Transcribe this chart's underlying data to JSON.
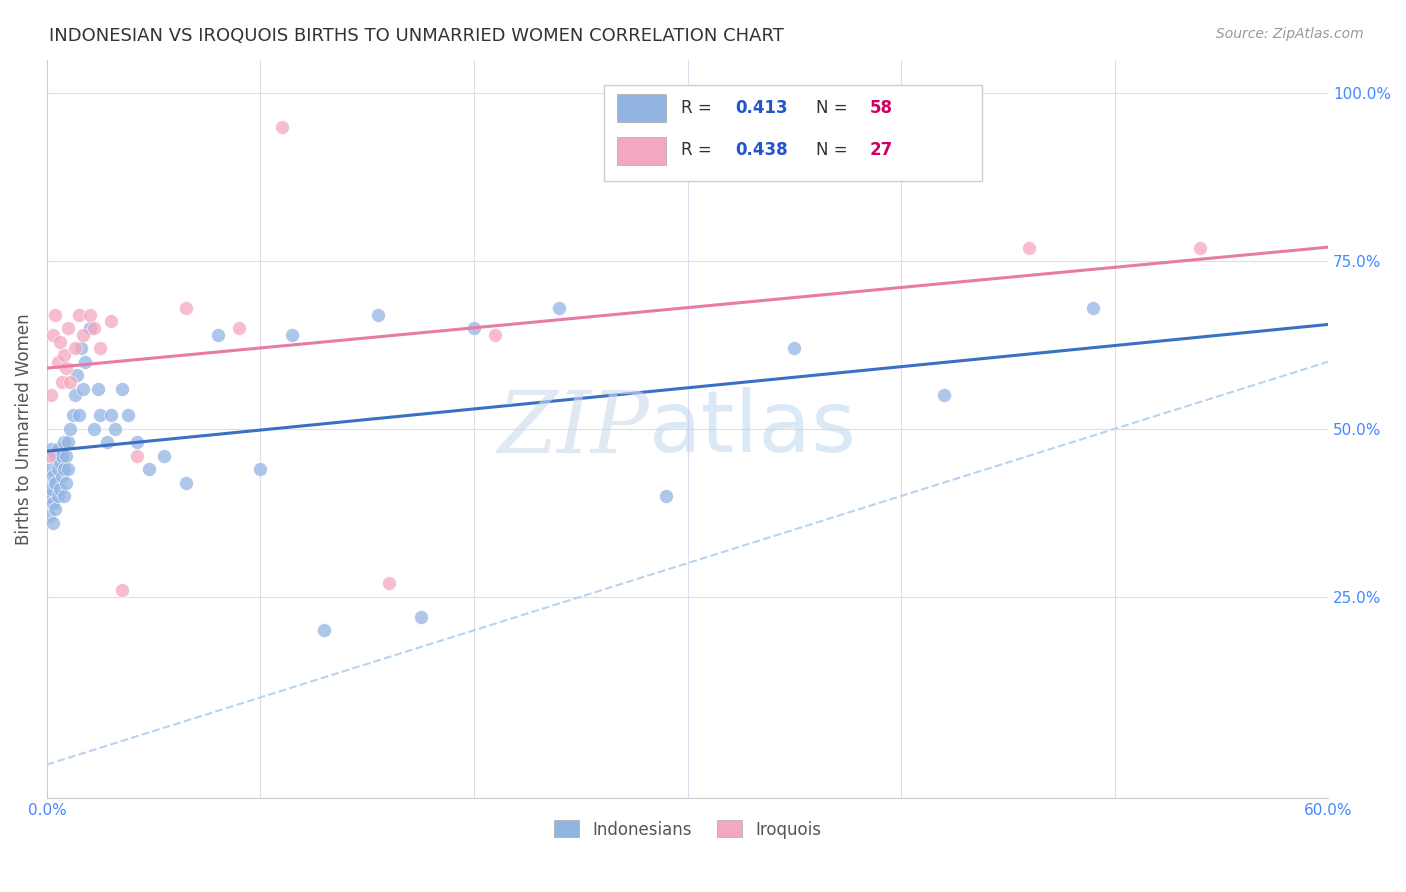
{
  "title": "INDONESIAN VS IROQUOIS BIRTHS TO UNMARRIED WOMEN CORRELATION CHART",
  "source": "Source: ZipAtlas.com",
  "ylabel": "Births to Unmarried Women",
  "xmin": 0.0,
  "xmax": 0.6,
  "ymin": -0.05,
  "ymax": 1.05,
  "indonesian_x": [
    0.001,
    0.001,
    0.002,
    0.002,
    0.002,
    0.003,
    0.003,
    0.003,
    0.004,
    0.004,
    0.004,
    0.005,
    0.005,
    0.005,
    0.006,
    0.006,
    0.007,
    0.007,
    0.008,
    0.008,
    0.008,
    0.009,
    0.009,
    0.01,
    0.01,
    0.011,
    0.012,
    0.013,
    0.014,
    0.015,
    0.016,
    0.017,
    0.018,
    0.02,
    0.022,
    0.024,
    0.025,
    0.028,
    0.03,
    0.032,
    0.035,
    0.038,
    0.042,
    0.048,
    0.055,
    0.065,
    0.08,
    0.1,
    0.115,
    0.13,
    0.155,
    0.175,
    0.2,
    0.24,
    0.29,
    0.35,
    0.42,
    0.49
  ],
  "indonesian_y": [
    0.37,
    0.4,
    0.41,
    0.44,
    0.47,
    0.36,
    0.39,
    0.43,
    0.38,
    0.42,
    0.46,
    0.4,
    0.44,
    0.47,
    0.41,
    0.45,
    0.43,
    0.46,
    0.4,
    0.44,
    0.48,
    0.42,
    0.46,
    0.44,
    0.48,
    0.5,
    0.52,
    0.55,
    0.58,
    0.52,
    0.62,
    0.56,
    0.6,
    0.65,
    0.5,
    0.56,
    0.52,
    0.48,
    0.52,
    0.5,
    0.56,
    0.52,
    0.48,
    0.44,
    0.46,
    0.42,
    0.64,
    0.44,
    0.64,
    0.2,
    0.67,
    0.22,
    0.65,
    0.68,
    0.4,
    0.62,
    0.55,
    0.68
  ],
  "iroquois_x": [
    0.001,
    0.002,
    0.003,
    0.004,
    0.005,
    0.006,
    0.007,
    0.008,
    0.009,
    0.01,
    0.011,
    0.013,
    0.015,
    0.017,
    0.02,
    0.022,
    0.025,
    0.03,
    0.035,
    0.042,
    0.065,
    0.09,
    0.11,
    0.16,
    0.21,
    0.46,
    0.54
  ],
  "iroquois_y": [
    0.46,
    0.55,
    0.64,
    0.67,
    0.6,
    0.63,
    0.57,
    0.61,
    0.59,
    0.65,
    0.57,
    0.62,
    0.67,
    0.64,
    0.67,
    0.65,
    0.62,
    0.66,
    0.26,
    0.46,
    0.68,
    0.65,
    0.95,
    0.27,
    0.64,
    0.77,
    0.77
  ],
  "indonesian_color": "#92b4e3",
  "iroquois_color": "#f4a7c0",
  "indonesian_line_color": "#3a6fc4",
  "iroquois_line_color": "#e87aa8",
  "diagonal_color": "#b8d4f0",
  "R_indonesian": "0.413",
  "N_indonesian": "58",
  "R_iroquois": "0.438",
  "N_iroquois": "27",
  "watermark_ZIP": "ZIP",
  "watermark_atlas": "atlas",
  "legend_R_color": "#2255cc",
  "legend_N_color": "#cc0066",
  "ytick_vals": [
    0.25,
    0.5,
    0.75,
    1.0
  ],
  "ytick_labels": [
    "25.0%",
    "50.0%",
    "75.0%",
    "100.0%"
  ]
}
